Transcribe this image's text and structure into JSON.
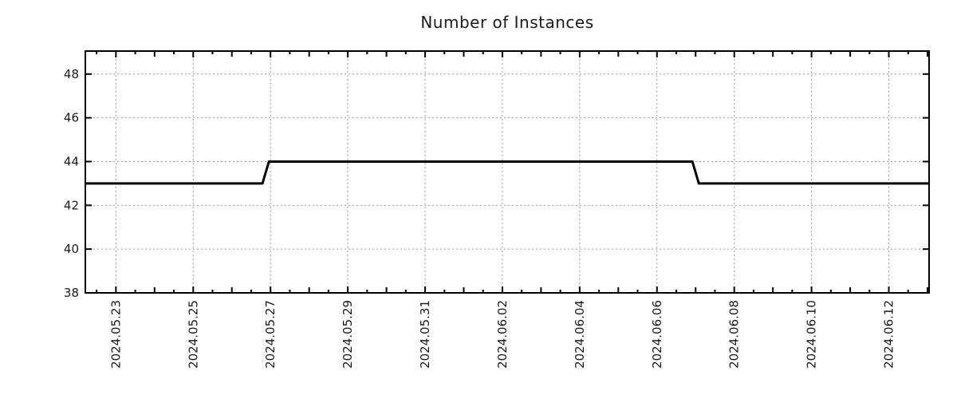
{
  "chart_data": {
    "type": "line",
    "title": "Number of Instances",
    "x_axis": {
      "type": "time",
      "first_major": "2024-05-23",
      "range": [
        "2024-05-22 05:00",
        "2024-06-13 01:00"
      ],
      "major_interval_days": 2,
      "minor_interval_days": 0.5,
      "tick_labels": [
        "2024.05.23",
        "2024.05.25",
        "2024.05.27",
        "2024.05.29",
        "2024.05.31",
        "2024.06.02",
        "2024.06.04",
        "2024.06.06",
        "2024.06.08",
        "2024.06.10",
        "2024.06.12"
      ]
    },
    "y_axis": {
      "range": [
        38,
        49.05
      ],
      "tick_values": [
        38,
        40,
        42,
        44,
        46,
        48
      ],
      "tick_labels": [
        "38",
        "40",
        "42",
        "44",
        "46",
        "48"
      ]
    },
    "series": [
      {
        "name": "instances",
        "color": "#000000",
        "line_width": 3,
        "points": [
          {
            "t": "2024-05-22 05:00",
            "v": 43
          },
          {
            "t": "2024-05-26 19:00",
            "v": 43
          },
          {
            "t": "2024-05-26 23:00",
            "v": 44
          },
          {
            "t": "2024-06-06 22:00",
            "v": 44
          },
          {
            "t": "2024-06-07 02:00",
            "v": 43
          },
          {
            "t": "2024-06-13 01:00",
            "v": 43
          }
        ]
      }
    ],
    "grid": {
      "show": true,
      "color": "#999999",
      "dash": "2 3"
    },
    "colors": {
      "axis": "#000000",
      "labels": "#1a1a1a",
      "title": "#1a1a1a",
      "background": "#ffffff"
    }
  }
}
